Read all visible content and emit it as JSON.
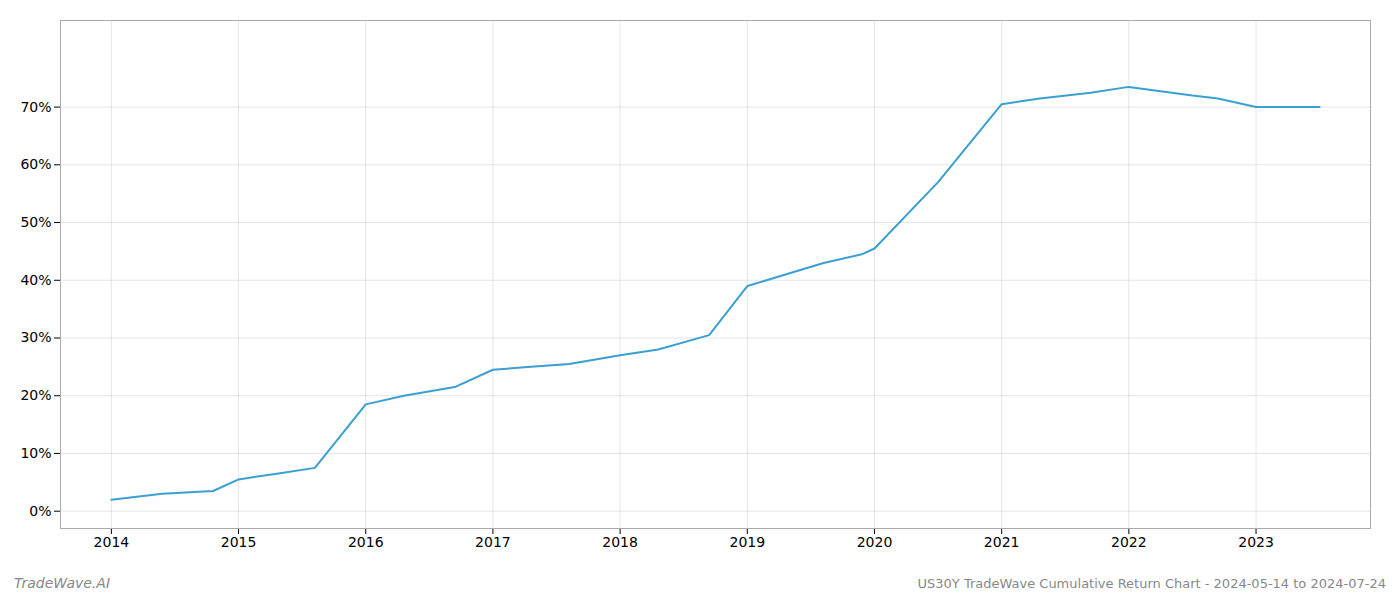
{
  "chart_data": {
    "type": "line",
    "title": "US30Y TradeWave Cumulative Return Chart - 2024-05-14 to 2024-07-24",
    "annotations": [
      "TradeWave.AI"
    ],
    "x": [
      2014.0,
      2014.4,
      2014.8,
      2015.0,
      2015.3,
      2015.6,
      2016.0,
      2016.3,
      2016.7,
      2017.0,
      2017.3,
      2017.6,
      2018.0,
      2018.3,
      2018.7,
      2019.0,
      2019.3,
      2019.6,
      2019.9,
      2020.0,
      2020.5,
      2021.0,
      2021.3,
      2021.7,
      2022.0,
      2022.5,
      2022.7,
      2023.0,
      2023.5
    ],
    "values": [
      2.0,
      3.0,
      3.5,
      5.5,
      6.5,
      7.5,
      18.5,
      20.0,
      21.5,
      24.5,
      25.0,
      25.5,
      27.0,
      28.0,
      30.5,
      39.0,
      41.0,
      43.0,
      44.5,
      45.5,
      57.0,
      70.5,
      71.5,
      72.5,
      73.5,
      72.0,
      71.5,
      70.0,
      70.0
    ],
    "color": "#3a9fd1",
    "xlim": [
      2013.6,
      2023.9
    ],
    "ylim": [
      -3,
      85
    ],
    "xticks": [
      2014,
      2015,
      2016,
      2017,
      2018,
      2019,
      2020,
      2021,
      2022,
      2023
    ],
    "yticks": [
      {
        "value": 0,
        "label": "0%"
      },
      {
        "value": 10,
        "label": "10%"
      },
      {
        "value": 20,
        "label": "20%"
      },
      {
        "value": 30,
        "label": "30%"
      },
      {
        "value": 40,
        "label": "40%"
      },
      {
        "value": 50,
        "label": "50%"
      },
      {
        "value": 60,
        "label": "60%"
      },
      {
        "value": 70,
        "label": "70%"
      }
    ],
    "grid": true
  }
}
